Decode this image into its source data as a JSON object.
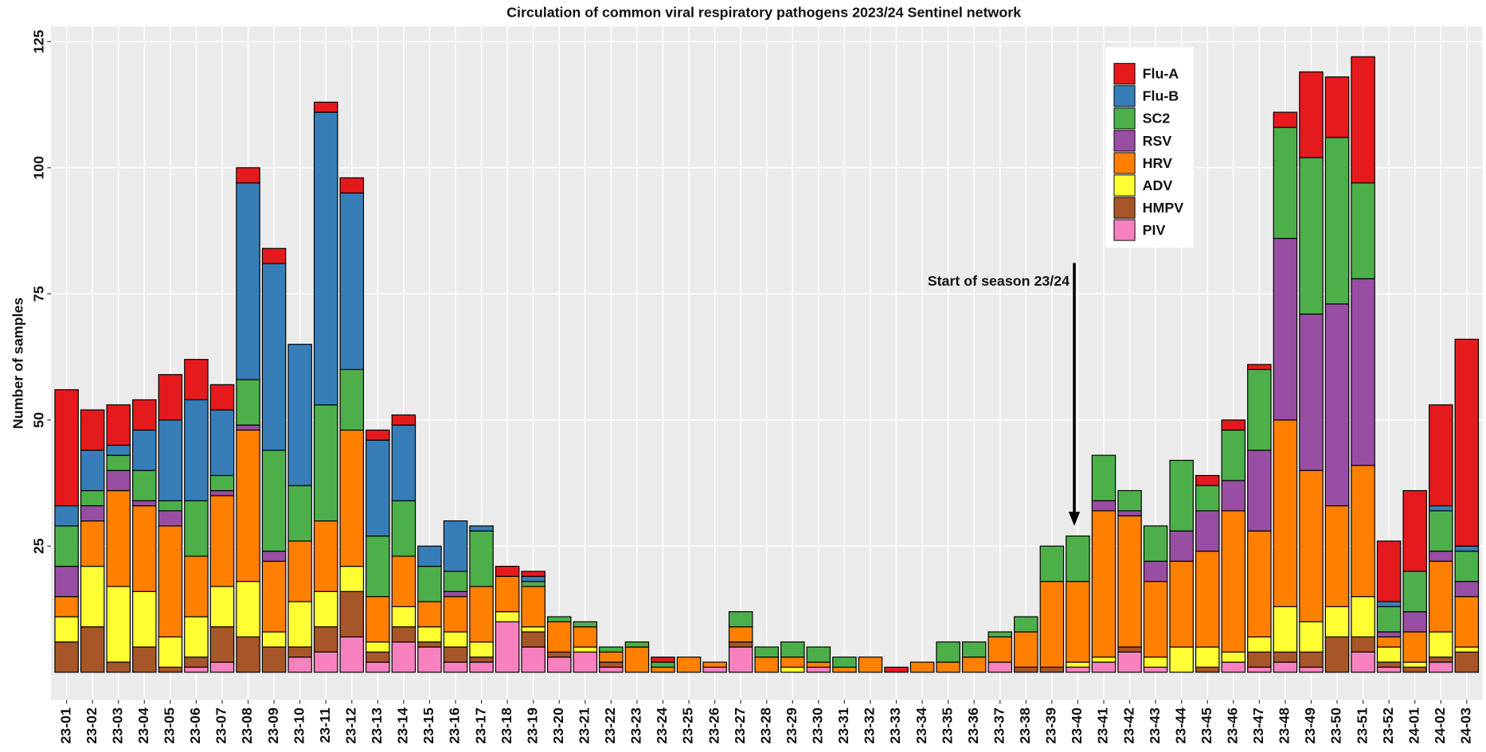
{
  "chart_data": {
    "type": "stacked_bar",
    "title": "Circulation of common viral respiratory  pathogens 2023/24 Sentinel network",
    "y_label": "Number of samples",
    "annotation": "Start of season 23/24",
    "grid": true,
    "legend_position": "top-right",
    "categories": [
      "23-01",
      "23-02",
      "23-03",
      "23-04",
      "23-05",
      "23-06",
      "23-07",
      "23-08",
      "23-09",
      "23-10",
      "23-11",
      "23-12",
      "23-13",
      "23-14",
      "23-15",
      "23-16",
      "23-17",
      "23-18",
      "23-19",
      "23-20",
      "23-21",
      "23-22",
      "23-23",
      "23-24",
      "23-25",
      "23-26",
      "23-27",
      "23-28",
      "23-29",
      "23-30",
      "23-31",
      "23-32",
      "23-33",
      "23-34",
      "23-35",
      "23-36",
      "23-37",
      "23-38",
      "23-39",
      "23-40",
      "23-41",
      "23-42",
      "23-43",
      "23-44",
      "23-45",
      "23-46",
      "23-47",
      "23-48",
      "23-49",
      "23-50",
      "23-51",
      "23-52",
      "24-01",
      "24-02",
      "24-03"
    ],
    "ylim": [
      -5.5,
      128
    ],
    "yticks": [
      25,
      50,
      75,
      100,
      125
    ],
    "series": [
      {
        "name": "Flu-A",
        "color": "#e41a1c",
        "values": [
          23,
          8,
          8,
          6,
          9,
          8,
          5,
          3,
          3,
          0,
          2,
          3,
          2,
          2,
          0,
          0,
          0,
          2,
          1,
          0,
          0,
          0,
          0,
          1,
          0,
          0,
          0,
          0,
          0,
          0,
          0,
          0,
          1,
          0,
          0,
          0,
          0,
          0,
          0,
          0,
          0,
          0,
          0,
          0,
          2,
          2,
          1,
          3,
          17,
          12,
          25,
          12,
          16,
          20,
          41
        ]
      },
      {
        "name": "Flu-B",
        "color": "#377eb8",
        "values": [
          4,
          8,
          2,
          8,
          16,
          20,
          13,
          39,
          37,
          28,
          58,
          35,
          19,
          15,
          4,
          10,
          1,
          0,
          1,
          0,
          0,
          0,
          0,
          0,
          0,
          0,
          0,
          0,
          0,
          0,
          0,
          0,
          0,
          0,
          0,
          0,
          0,
          0,
          0,
          0,
          0,
          0,
          0,
          0,
          0,
          0,
          0,
          0,
          0,
          0,
          0,
          1,
          0,
          1,
          1
        ]
      },
      {
        "name": "SC2",
        "color": "#4daf4a",
        "values": [
          8,
          3,
          3,
          6,
          2,
          11,
          3,
          9,
          20,
          11,
          23,
          12,
          12,
          11,
          7,
          4,
          11,
          0,
          1,
          1,
          1,
          1,
          1,
          1,
          0,
          0,
          3,
          2,
          3,
          3,
          2,
          0,
          0,
          0,
          4,
          3,
          1,
          3,
          7,
          9,
          9,
          4,
          7,
          14,
          5,
          10,
          16,
          22,
          31,
          33,
          19,
          5,
          8,
          8,
          6
        ]
      },
      {
        "name": "RSV",
        "color": "#984ea3",
        "values": [
          6,
          3,
          4,
          1,
          3,
          0,
          1,
          1,
          2,
          0,
          0,
          0,
          0,
          0,
          0,
          1,
          0,
          0,
          0,
          0,
          0,
          0,
          0,
          0,
          0,
          0,
          0,
          0,
          0,
          0,
          0,
          0,
          0,
          0,
          0,
          0,
          0,
          0,
          0,
          0,
          2,
          1,
          4,
          6,
          8,
          6,
          16,
          36,
          31,
          40,
          37,
          1,
          4,
          2,
          3
        ]
      },
      {
        "name": "HRV",
        "color": "#ff7f00",
        "values": [
          4,
          9,
          19,
          17,
          22,
          12,
          18,
          30,
          14,
          12,
          14,
          27,
          9,
          10,
          5,
          7,
          11,
          7,
          8,
          6,
          4,
          2,
          5,
          1,
          3,
          1,
          3,
          3,
          2,
          1,
          1,
          3,
          0,
          2,
          2,
          3,
          5,
          7,
          17,
          16,
          29,
          26,
          15,
          17,
          19,
          28,
          21,
          37,
          30,
          20,
          26,
          2,
          6,
          14,
          10
        ]
      },
      {
        "name": "ADV",
        "color": "#ffff33",
        "values": [
          5,
          12,
          15,
          11,
          6,
          8,
          8,
          11,
          3,
          9,
          7,
          5,
          2,
          4,
          3,
          3,
          3,
          2,
          1,
          0,
          1,
          0,
          0,
          0,
          0,
          0,
          0,
          0,
          1,
          0,
          0,
          0,
          0,
          0,
          0,
          0,
          0,
          0,
          0,
          1,
          1,
          0,
          2,
          5,
          4,
          2,
          3,
          9,
          6,
          6,
          8,
          3,
          1,
          5,
          1
        ]
      },
      {
        "name": "HMPV",
        "color": "#a65628",
        "values": [
          6,
          9,
          2,
          5,
          1,
          2,
          7,
          7,
          5,
          2,
          5,
          9,
          2,
          3,
          1,
          3,
          1,
          0,
          3,
          1,
          0,
          1,
          0,
          0,
          0,
          0,
          1,
          0,
          0,
          0,
          0,
          0,
          0,
          0,
          0,
          0,
          0,
          1,
          1,
          0,
          0,
          1,
          0,
          0,
          1,
          0,
          3,
          2,
          3,
          7,
          3,
          1,
          1,
          1,
          4
        ]
      },
      {
        "name": "PIV",
        "color": "#f781bf",
        "values": [
          0,
          0,
          0,
          0,
          0,
          1,
          2,
          0,
          0,
          3,
          4,
          7,
          2,
          6,
          5,
          2,
          2,
          10,
          5,
          3,
          4,
          1,
          0,
          0,
          0,
          1,
          5,
          0,
          0,
          1,
          0,
          0,
          0,
          0,
          0,
          0,
          2,
          0,
          0,
          1,
          2,
          4,
          1,
          0,
          0,
          2,
          1,
          2,
          1,
          0,
          4,
          1,
          0,
          2,
          0
        ]
      }
    ]
  }
}
